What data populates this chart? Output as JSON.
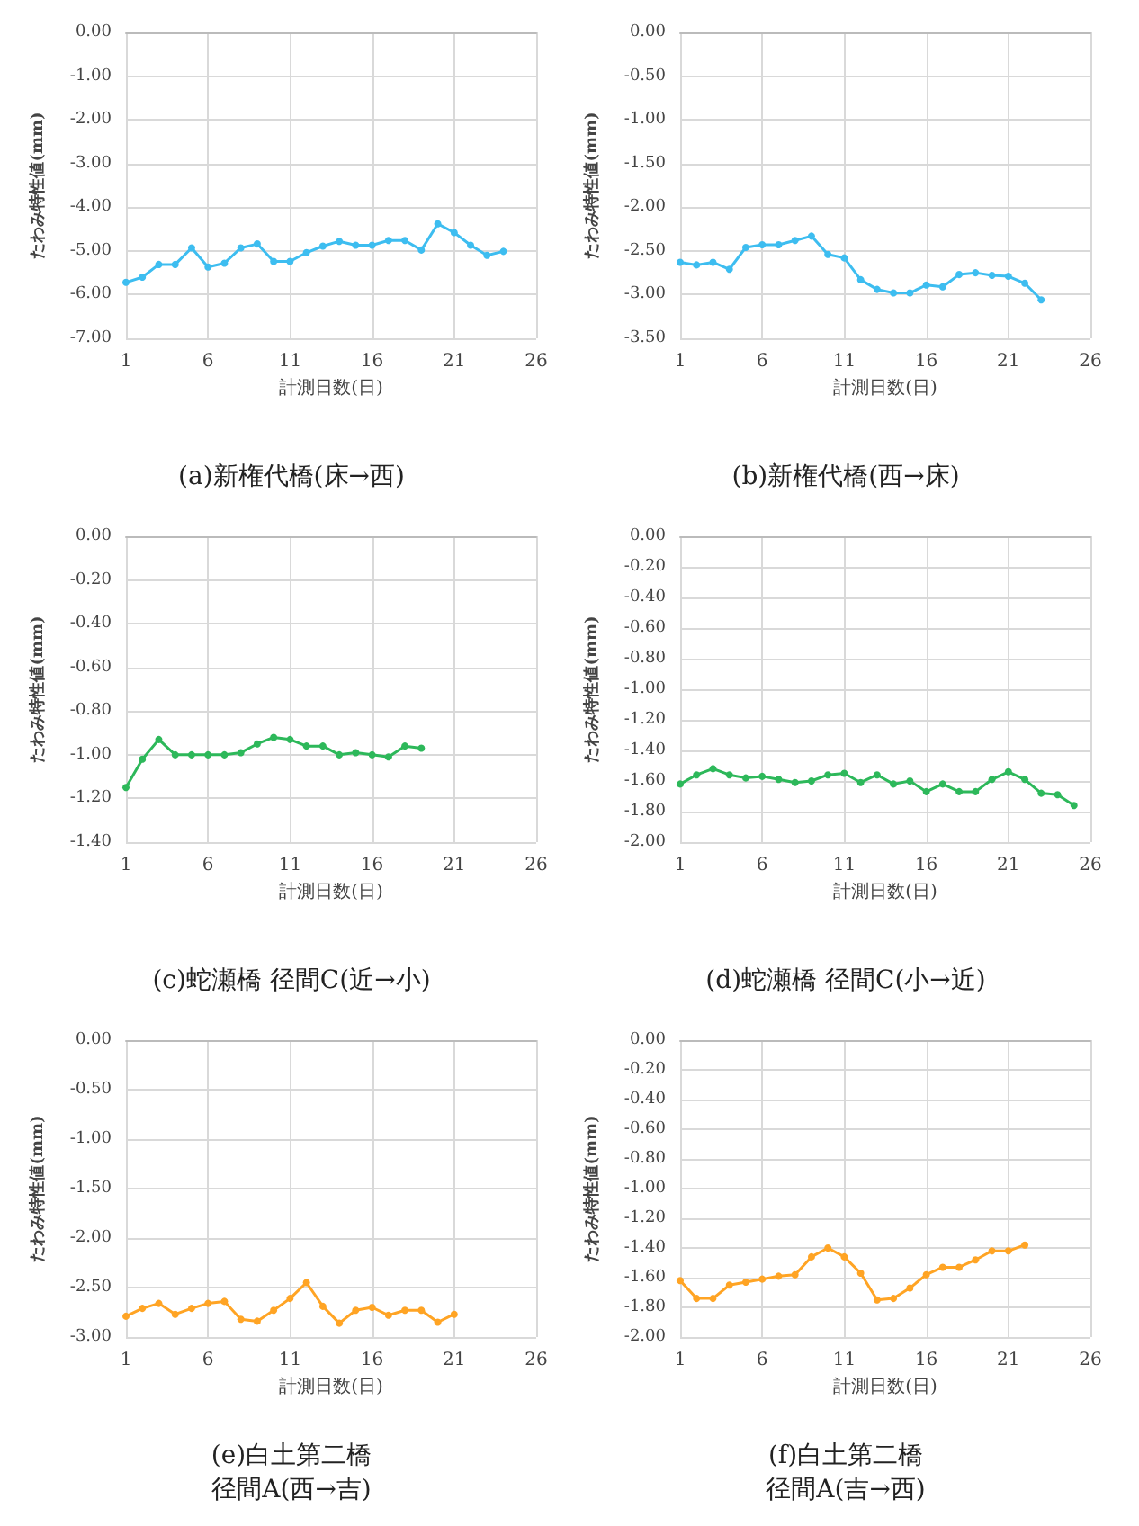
{
  "chart_data": [
    {
      "type": "line",
      "title": "(a)新権代橋(床→西)",
      "xlabel": "計測日数(日)",
      "ylabel": "たわみ特性値(mm)",
      "color": "#3dbdf0",
      "marker": "circle",
      "grid": true,
      "x": [
        1,
        2,
        3,
        4,
        5,
        6,
        7,
        8,
        9,
        10,
        11,
        12,
        13,
        14,
        15,
        16,
        17,
        18,
        19,
        20,
        21,
        22,
        23,
        24
      ],
      "values": [
        -5.72,
        -5.6,
        -5.31,
        -5.31,
        -4.93,
        -5.37,
        -5.28,
        -4.93,
        -4.84,
        -5.24,
        -5.24,
        -5.04,
        -4.89,
        -4.78,
        -4.87,
        -4.87,
        -4.76,
        -4.76,
        -4.98,
        -4.38,
        -4.58,
        -4.87,
        -5.1,
        -5.01
      ],
      "xlim": [
        1,
        26
      ],
      "xticks": [
        1,
        6,
        11,
        16,
        21,
        26
      ],
      "ylim": [
        -7,
        0
      ],
      "yticks": [
        {
          "value": -7,
          "label": "-7.00"
        },
        {
          "value": -6,
          "label": "-6.00"
        },
        {
          "value": -5,
          "label": "-5.00"
        },
        {
          "value": -4,
          "label": "-4.00"
        },
        {
          "value": -3,
          "label": "-3.00"
        },
        {
          "value": -2,
          "label": "-2.00"
        },
        {
          "value": -1,
          "label": "-1.00"
        },
        {
          "value": 0,
          "label": "0.00"
        }
      ]
    },
    {
      "type": "line",
      "title": "(b)新権代橋(西→床)",
      "xlabel": "計測日数(日)",
      "ylabel": "たわみ特性値(mm)",
      "color": "#3dbdf0",
      "marker": "circle",
      "grid": true,
      "x": [
        1,
        2,
        3,
        4,
        5,
        6,
        7,
        8,
        9,
        10,
        11,
        12,
        13,
        14,
        15,
        16,
        17,
        18,
        19,
        20,
        21,
        22,
        23
      ],
      "values": [
        -2.63,
        -2.66,
        -2.63,
        -2.71,
        -2.46,
        -2.43,
        -2.43,
        -2.38,
        -2.33,
        -2.54,
        -2.58,
        -2.83,
        -2.94,
        -2.98,
        -2.98,
        -2.89,
        -2.91,
        -2.77,
        -2.75,
        -2.78,
        -2.79,
        -2.87,
        -3.06
      ],
      "xlim": [
        1,
        26
      ],
      "xticks": [
        1,
        6,
        11,
        16,
        21,
        26
      ],
      "ylim": [
        -3.5,
        0
      ],
      "yticks": [
        {
          "value": -3.5,
          "label": "-3.50"
        },
        {
          "value": -3,
          "label": "-3.00"
        },
        {
          "value": -2.5,
          "label": "-2.50"
        },
        {
          "value": -2,
          "label": "-2.00"
        },
        {
          "value": -1.5,
          "label": "-1.50"
        },
        {
          "value": -1,
          "label": "-1.00"
        },
        {
          "value": -0.5,
          "label": "-0.50"
        },
        {
          "value": 0,
          "label": "0.00"
        }
      ]
    },
    {
      "type": "line",
      "title": "(c)蛇瀬橋 径間C(近→小)",
      "xlabel": "計測日数(日)",
      "ylabel": "たわみ特性値(mm)",
      "color": "#2db85a",
      "marker": "circle",
      "grid": true,
      "x": [
        1,
        2,
        3,
        4,
        5,
        6,
        7,
        8,
        9,
        10,
        11,
        12,
        13,
        14,
        15,
        16,
        17,
        18,
        19
      ],
      "values": [
        -1.15,
        -1.02,
        -0.93,
        -1.0,
        -1.0,
        -1.0,
        -1.0,
        -0.99,
        -0.95,
        -0.92,
        -0.93,
        -0.96,
        -0.96,
        -1.0,
        -0.99,
        -1.0,
        -1.01,
        -0.96,
        -0.97
      ],
      "xlim": [
        1,
        26
      ],
      "xticks": [
        1,
        6,
        11,
        16,
        21,
        26
      ],
      "ylim": [
        -1.4,
        0
      ],
      "yticks": [
        {
          "value": -1.4,
          "label": "-1.40"
        },
        {
          "value": -1.2,
          "label": "-1.20"
        },
        {
          "value": -1,
          "label": "-1.00"
        },
        {
          "value": -0.8,
          "label": "-0.80"
        },
        {
          "value": -0.6,
          "label": "-0.60"
        },
        {
          "value": -0.4,
          "label": "-0.40"
        },
        {
          "value": -0.2,
          "label": "-0.20"
        },
        {
          "value": 0,
          "label": "0.00"
        }
      ]
    },
    {
      "type": "line",
      "title": "(d)蛇瀬橋 径間C(小→近)",
      "xlabel": "計測日数(日)",
      "ylabel": "たわみ特性値(mm)",
      "color": "#2db85a",
      "marker": "circle",
      "grid": true,
      "x": [
        1,
        2,
        3,
        4,
        5,
        6,
        7,
        8,
        9,
        10,
        11,
        12,
        13,
        14,
        15,
        16,
        17,
        18,
        19,
        20,
        21,
        22,
        23,
        24,
        25
      ],
      "values": [
        -1.62,
        -1.56,
        -1.52,
        -1.56,
        -1.58,
        -1.57,
        -1.59,
        -1.61,
        -1.6,
        -1.56,
        -1.55,
        -1.61,
        -1.56,
        -1.62,
        -1.6,
        -1.67,
        -1.62,
        -1.67,
        -1.67,
        -1.59,
        -1.54,
        -1.59,
        -1.68,
        -1.69,
        -1.76
      ],
      "xlim": [
        1,
        26
      ],
      "xticks": [
        1,
        6,
        11,
        16,
        21,
        26
      ],
      "ylim": [
        -2,
        0
      ],
      "yticks": [
        {
          "value": -2,
          "label": "-2.00"
        },
        {
          "value": -1.8,
          "label": "-1.80"
        },
        {
          "value": -1.6,
          "label": "-1.60"
        },
        {
          "value": -1.4,
          "label": "-1.40"
        },
        {
          "value": -1.2,
          "label": "-1.20"
        },
        {
          "value": -1,
          "label": "-1.00"
        },
        {
          "value": -0.8,
          "label": "-0.80"
        },
        {
          "value": -0.6,
          "label": "-0.60"
        },
        {
          "value": -0.4,
          "label": "-0.40"
        },
        {
          "value": -0.2,
          "label": "-0.20"
        },
        {
          "value": 0,
          "label": "0.00"
        }
      ]
    },
    {
      "type": "line",
      "title": "(e)白土第二橋",
      "subtitle": "径間A(西→吉)",
      "xlabel": "計測日数(日)",
      "ylabel": "たわみ特性値(mm)",
      "color": "#ffa424",
      "marker": "circle",
      "grid": true,
      "x": [
        1,
        2,
        3,
        4,
        5,
        6,
        7,
        8,
        9,
        10,
        11,
        12,
        13,
        14,
        15,
        16,
        17,
        18,
        19,
        20,
        21
      ],
      "values": [
        -2.79,
        -2.71,
        -2.66,
        -2.77,
        -2.71,
        -2.66,
        -2.64,
        -2.82,
        -2.84,
        -2.73,
        -2.61,
        -2.45,
        -2.69,
        -2.86,
        -2.73,
        -2.7,
        -2.78,
        -2.73,
        -2.73,
        -2.85,
        -2.77
      ],
      "xlim": [
        1,
        26
      ],
      "xticks": [
        1,
        6,
        11,
        16,
        21,
        26
      ],
      "ylim": [
        -3,
        0
      ],
      "yticks": [
        {
          "value": -3,
          "label": "-3.00"
        },
        {
          "value": -2.5,
          "label": "-2.50"
        },
        {
          "value": -2,
          "label": "-2.00"
        },
        {
          "value": -1.5,
          "label": "-1.50"
        },
        {
          "value": -1,
          "label": "-1.00"
        },
        {
          "value": -0.5,
          "label": "-0.50"
        },
        {
          "value": 0,
          "label": "0.00"
        }
      ]
    },
    {
      "type": "line",
      "title": "(f)白土第二橋",
      "subtitle": "径間A(吉→西)",
      "xlabel": "計測日数(日)",
      "ylabel": "たわみ特性値(mm)",
      "color": "#ffa424",
      "marker": "circle",
      "grid": true,
      "x": [
        1,
        2,
        3,
        4,
        5,
        6,
        7,
        8,
        9,
        10,
        11,
        12,
        13,
        14,
        15,
        16,
        17,
        18,
        19,
        20,
        21,
        22
      ],
      "values": [
        -1.62,
        -1.74,
        -1.74,
        -1.65,
        -1.63,
        -1.61,
        -1.59,
        -1.58,
        -1.46,
        -1.4,
        -1.46,
        -1.57,
        -1.75,
        -1.74,
        -1.67,
        -1.58,
        -1.53,
        -1.53,
        -1.48,
        -1.42,
        -1.42,
        -1.38
      ],
      "xlim": [
        1,
        26
      ],
      "xticks": [
        1,
        6,
        11,
        16,
        21,
        26
      ],
      "ylim": [
        -2,
        0
      ],
      "yticks": [
        {
          "value": -2,
          "label": "-2.00"
        },
        {
          "value": -1.8,
          "label": "-1.80"
        },
        {
          "value": -1.6,
          "label": "-1.60"
        },
        {
          "value": -1.4,
          "label": "-1.40"
        },
        {
          "value": -1.2,
          "label": "-1.20"
        },
        {
          "value": -1,
          "label": "-1.00"
        },
        {
          "value": -0.8,
          "label": "-0.80"
        },
        {
          "value": -0.6,
          "label": "-0.60"
        },
        {
          "value": -0.4,
          "label": "-0.40"
        },
        {
          "value": -0.2,
          "label": "-0.20"
        },
        {
          "value": 0,
          "label": "0.00"
        }
      ]
    }
  ]
}
